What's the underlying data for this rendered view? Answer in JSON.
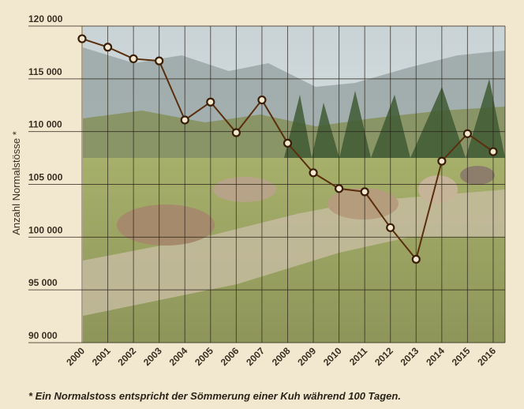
{
  "chart_data": {
    "type": "line",
    "title": "",
    "xlabel": "",
    "ylabel": "Anzahl Normalstösse *",
    "x": [
      "2000",
      "2001",
      "2002",
      "2003",
      "2004",
      "2005",
      "2006",
      "2007",
      "2008",
      "2009",
      "2010",
      "2011",
      "2012",
      "2013",
      "2014",
      "2015",
      "2016"
    ],
    "series": [
      {
        "values": [
          118800,
          118000,
          116900,
          116700,
          111100,
          112800,
          109900,
          113000,
          108900,
          106100,
          104600,
          104300,
          100900,
          97900,
          107200,
          109800,
          108100
        ]
      }
    ],
    "ylim": [
      90000,
      120000
    ],
    "yticks": [
      90000,
      95000,
      100000,
      105000,
      110000,
      115000,
      120000
    ],
    "ytick_labels": [
      "90 000",
      "95 000",
      "100 000",
      "105 000",
      "110 000",
      "115 000",
      "120 000"
    ],
    "grid": true,
    "background": "photo of alpine pasture with grazing cows",
    "line_color": "#5a2f0e",
    "marker_fill": "#f2e8cf"
  },
  "footnote": "*  Ein Normalstoss entspricht der Sömmerung einer Kuh während 100 Tagen."
}
